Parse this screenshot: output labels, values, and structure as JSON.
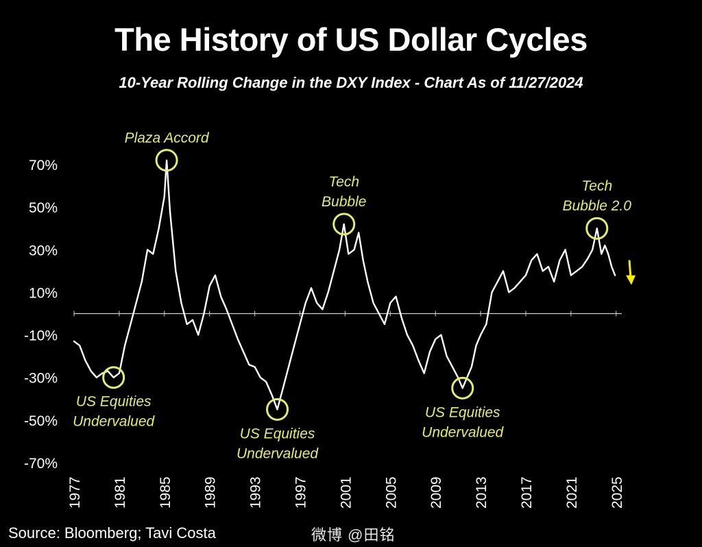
{
  "header": {
    "title": "The History of US Dollar Cycles",
    "subtitle": "10-Year Rolling Change in the DXY Index - Chart As of 11/27/2024"
  },
  "footer": {
    "source": "Source: Bloomberg; Tavi Costa",
    "watermark": "微博 @田铭"
  },
  "colors": {
    "background": "#000000",
    "line": "#ffffff",
    "annotation": "#e6ec6a",
    "arrow": "#f0f000"
  },
  "chart_data": {
    "type": "line",
    "x_ticks": [
      "1977",
      "1981",
      "1985",
      "1989",
      "1993",
      "1997",
      "2001",
      "2005",
      "2009",
      "2013",
      "2017",
      "2021",
      "2025"
    ],
    "y_ticks": [
      "70%",
      "50%",
      "30%",
      "10%",
      "-10%",
      "-30%",
      "-50%",
      "-70%"
    ],
    "xlim": [
      1977,
      2025.5
    ],
    "ylim": [
      -70,
      70
    ],
    "grid": false,
    "zero_line": true,
    "series": [
      {
        "x": [
          1977.0,
          1977.5,
          1978.0,
          1978.5,
          1979.0,
          1979.5,
          1980.0,
          1980.5,
          1981.0,
          1981.5,
          1982.0,
          1982.5,
          1983.0,
          1983.5,
          1984.0,
          1984.5,
          1985.0,
          1985.2,
          1985.5,
          1986.0,
          1986.5,
          1987.0,
          1987.5,
          1988.0,
          1988.5,
          1989.0,
          1989.5,
          1990.0,
          1990.5,
          1991.0,
          1991.5,
          1992.0,
          1992.5,
          1993.0,
          1993.5,
          1994.0,
          1994.5,
          1995.0,
          1995.5,
          1996.0,
          1996.5,
          1997.0,
          1997.5,
          1998.0,
          1998.5,
          1999.0,
          1999.5,
          2000.0,
          2000.5,
          2000.9,
          2001.3,
          2001.8,
          2002.2,
          2002.6,
          2003.0,
          2003.5,
          2004.0,
          2004.5,
          2005.0,
          2005.5,
          2006.0,
          2006.5,
          2007.0,
          2007.5,
          2008.0,
          2008.5,
          2009.0,
          2009.5,
          2010.0,
          2010.5,
          2011.0,
          2011.4,
          2011.8,
          2012.2,
          2012.6,
          2013.0,
          2013.5,
          2014.0,
          2014.5,
          2015.0,
          2015.5,
          2016.0,
          2016.5,
          2017.0,
          2017.5,
          2018.0,
          2018.5,
          2019.0,
          2019.5,
          2020.0,
          2020.5,
          2021.0,
          2021.5,
          2022.0,
          2022.5,
          2022.9,
          2023.3,
          2023.7,
          2024.0,
          2024.3,
          2024.6,
          2024.9
        ],
        "y": [
          -13,
          -15,
          -22,
          -27,
          -30,
          -28,
          -27,
          -30,
          -28,
          -15,
          -5,
          5,
          15,
          30,
          28,
          40,
          55,
          72,
          48,
          20,
          5,
          -5,
          -3,
          -10,
          0,
          13,
          18,
          8,
          2,
          -5,
          -12,
          -18,
          -24,
          -25,
          -30,
          -32,
          -38,
          -45,
          -35,
          -25,
          -15,
          -5,
          5,
          12,
          5,
          2,
          10,
          20,
          30,
          42,
          28,
          30,
          38,
          25,
          15,
          5,
          0,
          -5,
          5,
          8,
          -2,
          -10,
          -15,
          -22,
          -28,
          -18,
          -12,
          -10,
          -20,
          -25,
          -30,
          -35,
          -30,
          -25,
          -15,
          -10,
          -5,
          10,
          15,
          20,
          10,
          12,
          15,
          18,
          25,
          28,
          20,
          22,
          15,
          25,
          30,
          18,
          20,
          22,
          26,
          30,
          40,
          28,
          32,
          28,
          22,
          18
        ]
      }
    ],
    "annotations": [
      {
        "text": [
          "Plaza Accord"
        ],
        "x": 1985.2,
        "y": 72
      },
      {
        "text": [
          "Tech",
          "Bubble"
        ],
        "x": 2000.9,
        "y": 42
      },
      {
        "text": [
          "Tech",
          "Bubble 2.0"
        ],
        "x": 2023.3,
        "y": 40
      },
      {
        "text": [
          "US Equities",
          "Undervalued"
        ],
        "x": 1980.5,
        "y": -30
      },
      {
        "text": [
          "US Equities",
          "Undervalued"
        ],
        "x": 1995.0,
        "y": -45
      },
      {
        "text": [
          "US Equities",
          "Undervalued"
        ],
        "x": 2011.4,
        "y": -35
      }
    ]
  }
}
